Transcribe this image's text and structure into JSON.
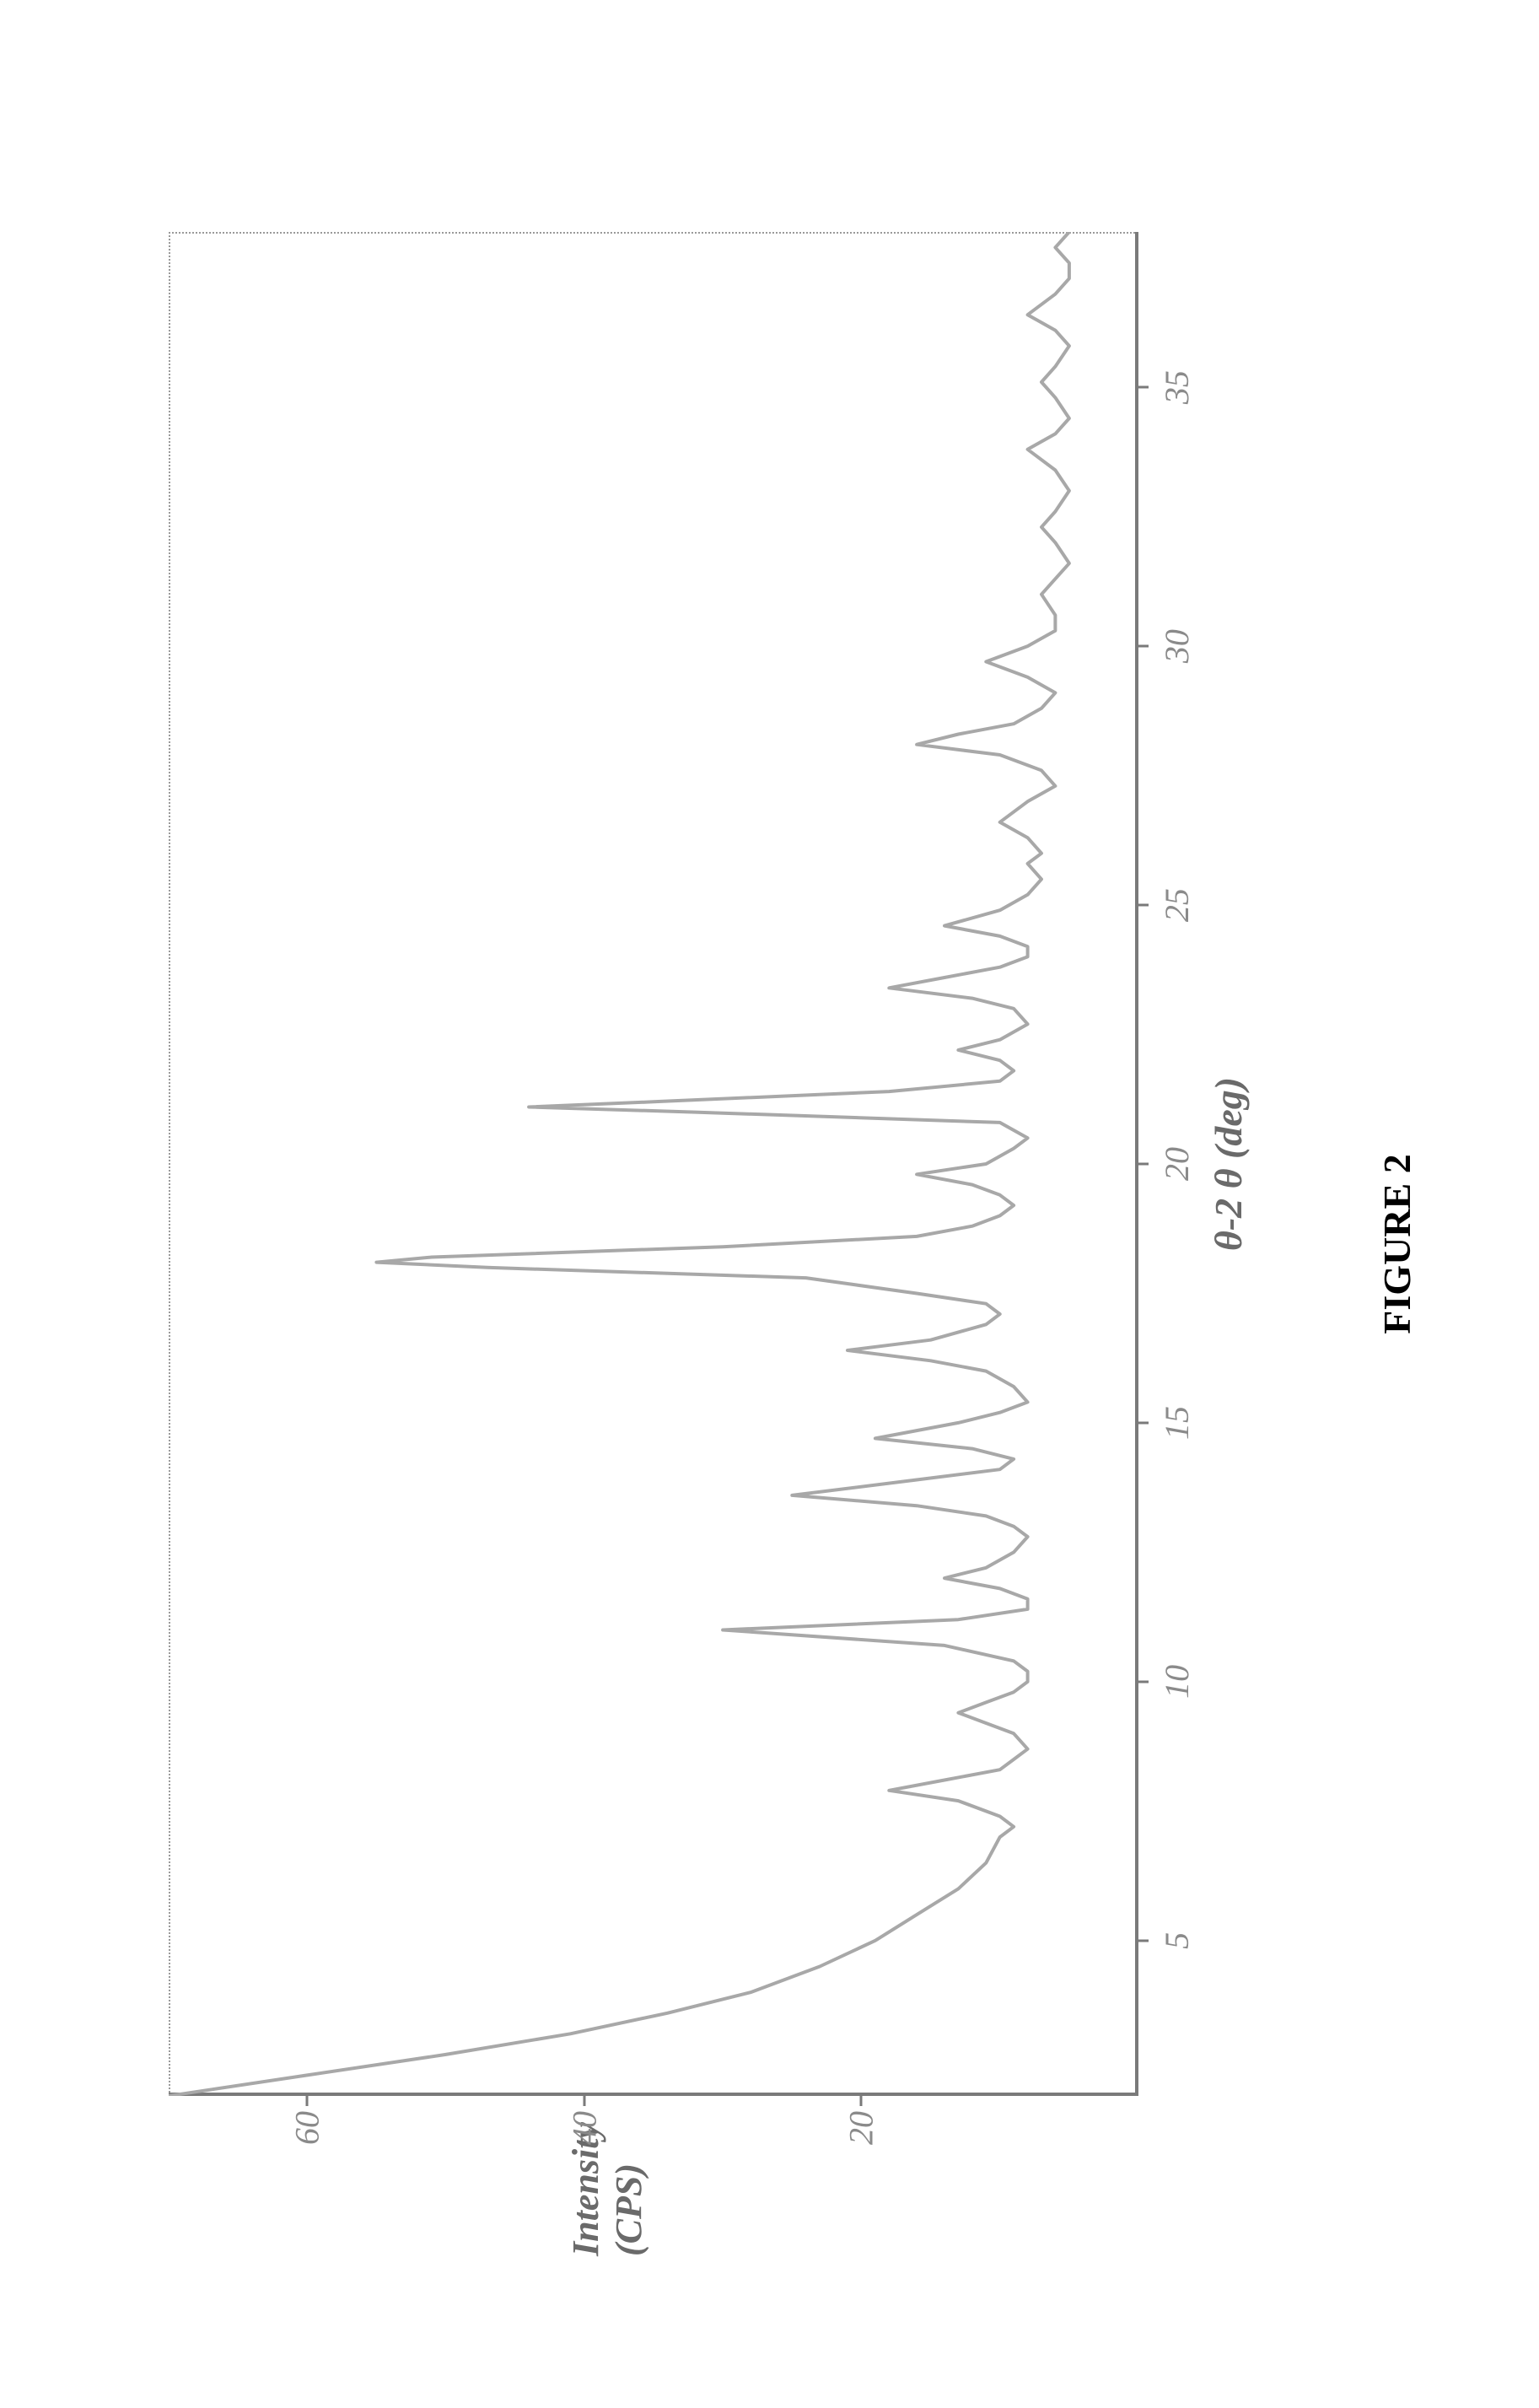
{
  "figure": {
    "caption": "FIGURE 2",
    "caption_fontsize": 46,
    "caption_color": "#000000",
    "caption_fontweight": "bold"
  },
  "chart": {
    "type": "line",
    "background_color": "#ffffff",
    "frame_color": "#9a9a9a",
    "axis_color": "#7a7a7a",
    "tick_color": "#7a7a7a",
    "series_color": "#a8a8a8",
    "series_stroke_width": 4,
    "ylabel": "Intensity\n(CPS)",
    "ylabel_fontsize": 44,
    "ylabel_color": "#6a6a6a",
    "xlabel": "θ-2 θ (deg)",
    "xlabel_fontsize": 46,
    "xlabel_color": "#6a6a6a",
    "tick_label_fontsize": 40,
    "tick_label_color": "#8a8a8a",
    "xlim": [
      2,
      38
    ],
    "ylim": [
      0,
      70
    ],
    "yticks": [
      20,
      40,
      60
    ],
    "xticks": [
      5,
      10,
      15,
      20,
      25,
      30,
      35
    ],
    "series": {
      "x": [
        2.0,
        2.4,
        2.8,
        3.2,
        3.6,
        4.0,
        4.5,
        5.0,
        5.5,
        6.0,
        6.5,
        7.0,
        7.2,
        7.4,
        7.7,
        7.9,
        8.1,
        8.3,
        8.5,
        8.7,
        9.0,
        9.2,
        9.4,
        9.6,
        9.8,
        10.0,
        10.2,
        10.4,
        10.7,
        11.0,
        11.2,
        11.4,
        11.6,
        11.8,
        12.0,
        12.2,
        12.5,
        12.8,
        13.0,
        13.2,
        13.4,
        13.6,
        13.9,
        14.1,
        14.3,
        14.5,
        14.7,
        15.0,
        15.2,
        15.4,
        15.7,
        16.0,
        16.2,
        16.4,
        16.6,
        16.9,
        17.1,
        17.3,
        17.5,
        17.8,
        18.0,
        18.1,
        18.2,
        18.4,
        18.6,
        18.8,
        19.0,
        19.2,
        19.4,
        19.6,
        19.8,
        20.0,
        20.3,
        20.5,
        20.8,
        21.0,
        21.1,
        21.2,
        21.4,
        21.6,
        21.8,
        22.0,
        22.2,
        22.4,
        22.7,
        23.0,
        23.2,
        23.4,
        23.6,
        23.8,
        24.0,
        24.2,
        24.4,
        24.6,
        24.9,
        25.2,
        25.5,
        25.8,
        26.0,
        26.3,
        26.6,
        27.0,
        27.3,
        27.6,
        27.9,
        28.1,
        28.3,
        28.5,
        28.8,
        29.1,
        29.4,
        29.7,
        30.0,
        30.3,
        30.6,
        31.0,
        31.3,
        31.6,
        32.0,
        32.3,
        32.6,
        33.0,
        33.4,
        33.8,
        34.1,
        34.4,
        34.8,
        35.1,
        35.4,
        35.8,
        36.1,
        36.4,
        36.8,
        37.1,
        37.4,
        37.7,
        38.0
      ],
      "y": [
        70,
        60,
        50,
        41,
        34,
        28,
        23,
        19,
        16,
        13,
        11,
        10,
        9,
        10,
        13,
        18,
        14,
        10,
        9,
        8,
        9,
        11,
        13,
        11,
        9,
        8,
        8,
        9,
        14,
        30,
        13,
        8,
        8,
        10,
        14,
        11,
        9,
        8,
        9,
        11,
        16,
        25,
        16,
        10,
        9,
        12,
        19,
        13,
        10,
        8,
        9,
        11,
        15,
        21,
        15,
        11,
        10,
        11,
        16,
        24,
        47,
        55,
        51,
        30,
        16,
        12,
        10,
        9,
        10,
        12,
        16,
        11,
        9,
        8,
        10,
        32,
        44,
        35,
        18,
        10,
        9,
        10,
        13,
        10,
        8,
        9,
        12,
        18,
        14,
        10,
        8,
        8,
        10,
        14,
        10,
        8,
        7,
        8,
        7,
        8,
        10,
        8,
        6,
        7,
        10,
        16,
        13,
        9,
        7,
        6,
        8,
        11,
        8,
        6,
        6,
        7,
        6,
        5,
        6,
        7,
        6,
        5,
        6,
        8,
        6,
        5,
        6,
        7,
        6,
        5,
        6,
        8,
        6,
        5,
        5,
        6,
        5
      ]
    }
  }
}
